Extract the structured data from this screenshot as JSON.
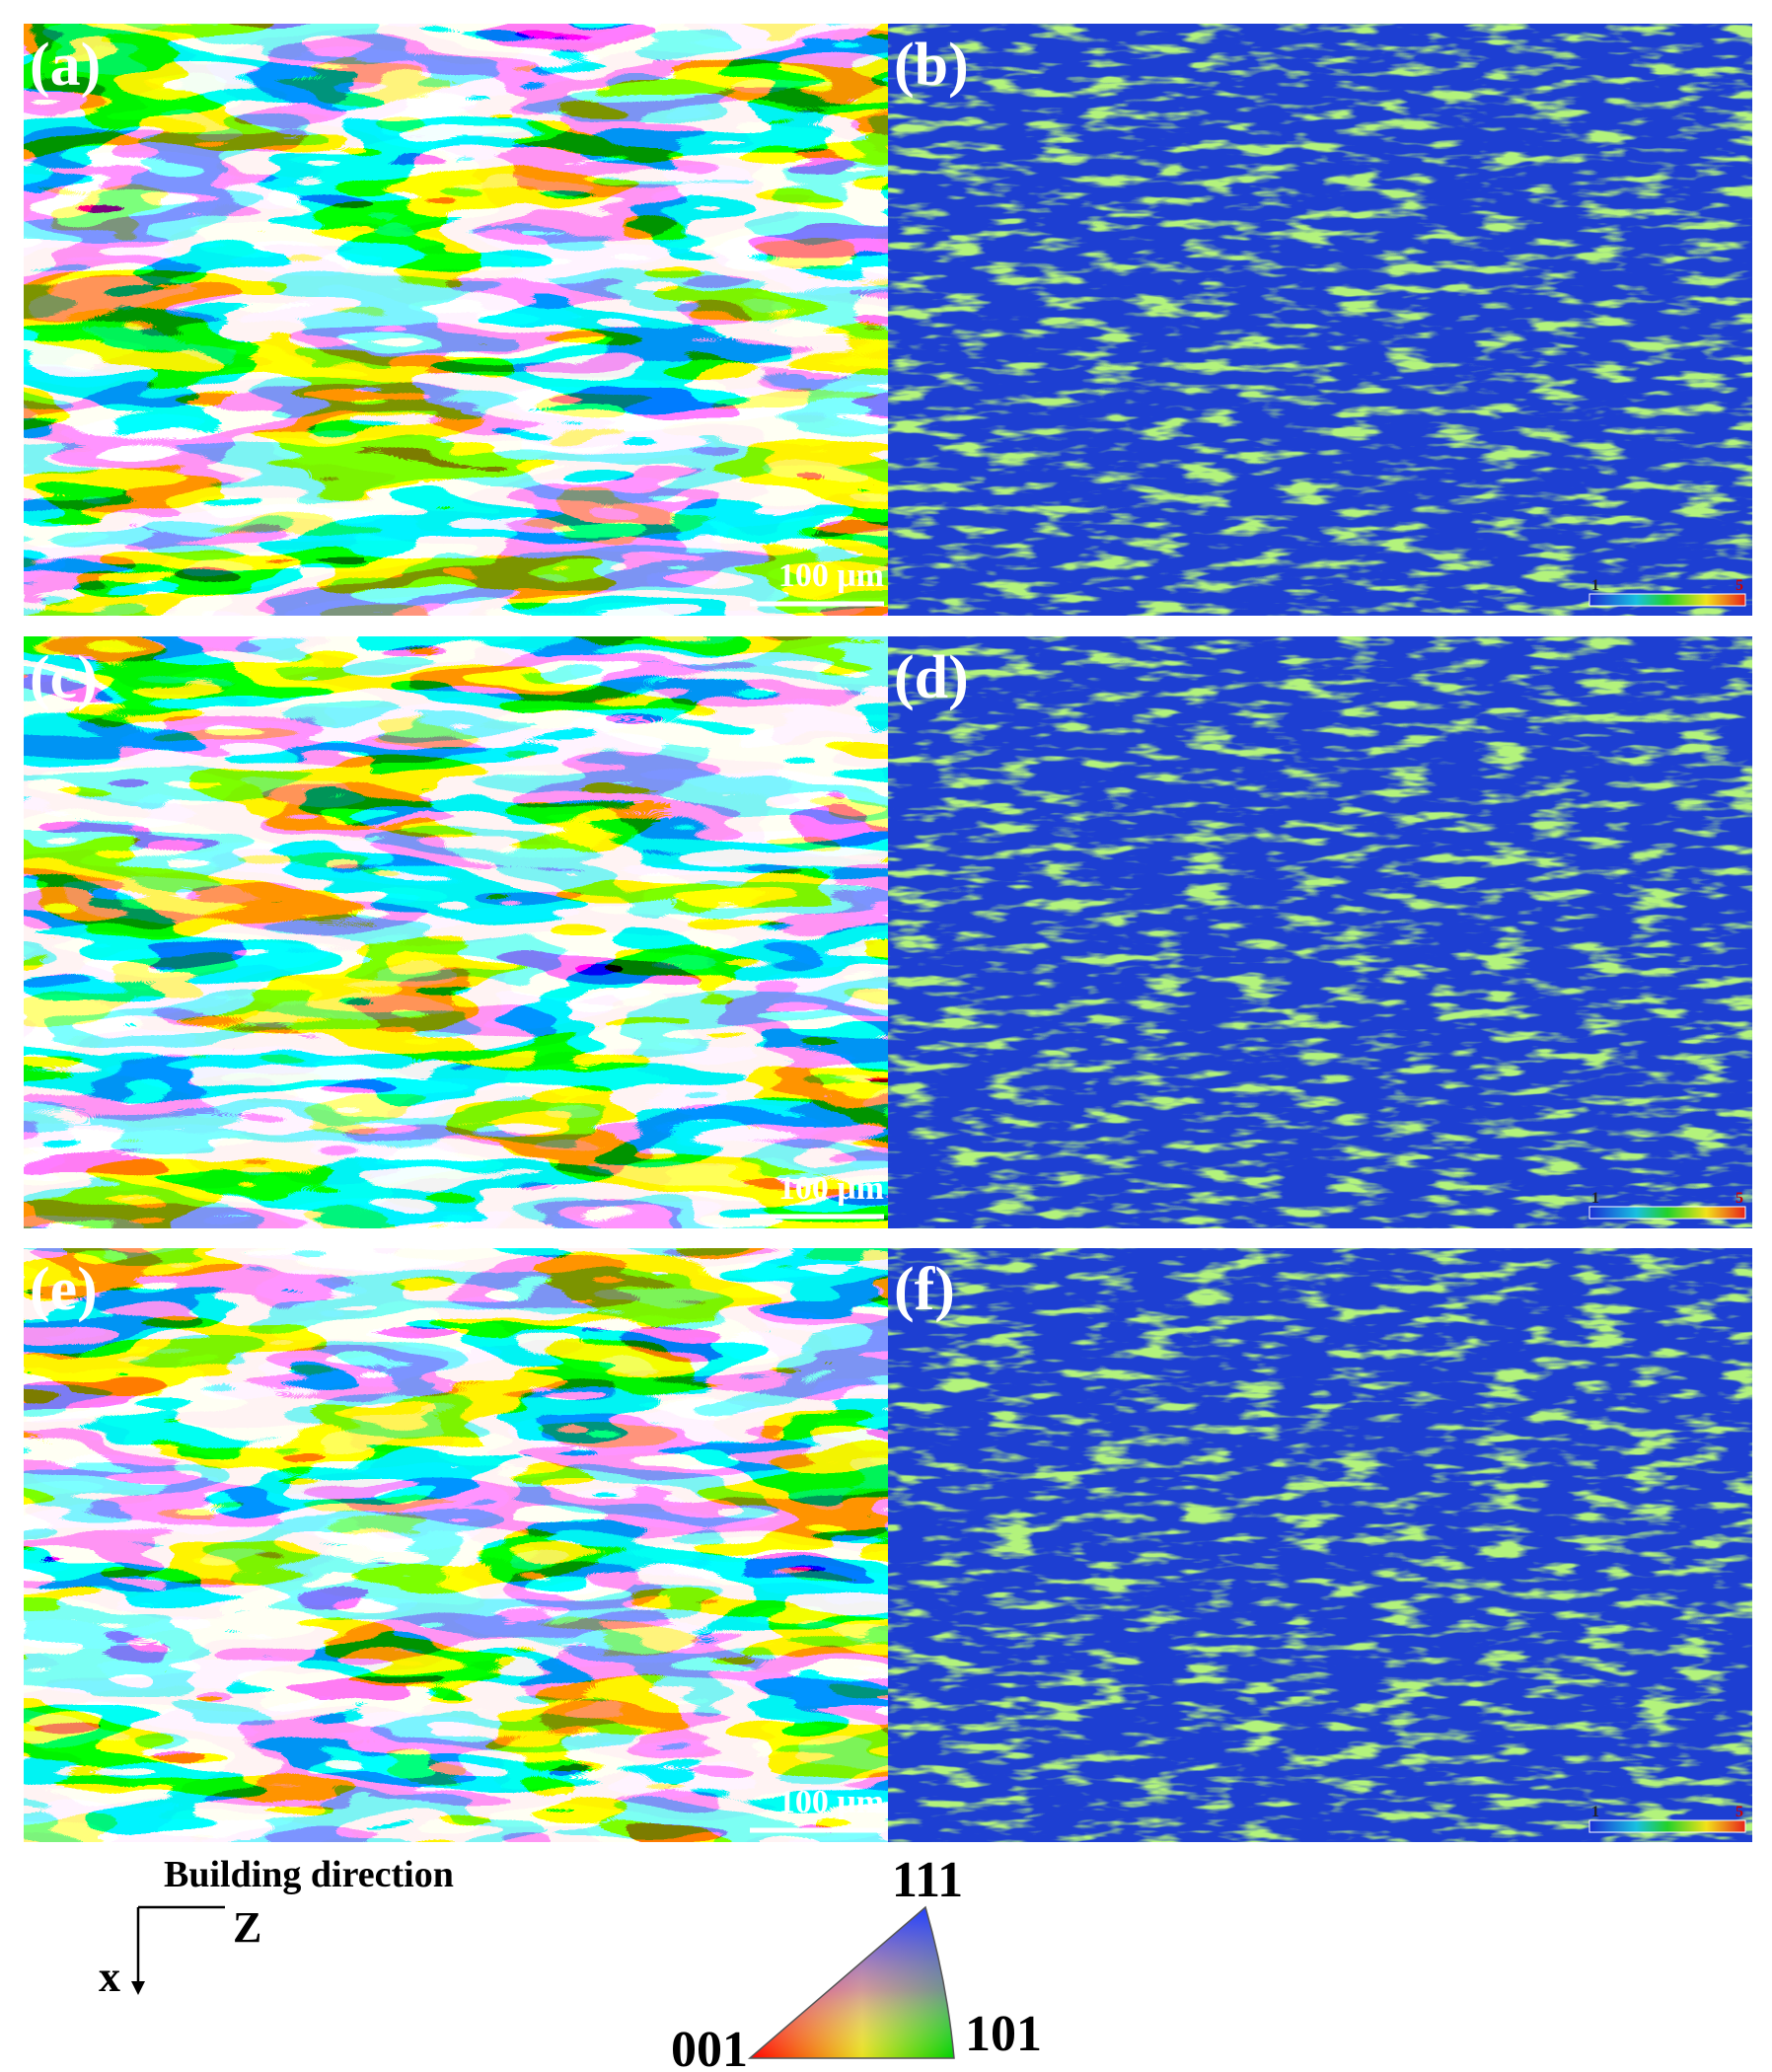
{
  "panels": [
    {
      "label": "(a)",
      "scale_bar": "100 μm"
    },
    {
      "label": "(b)",
      "colorbar": {
        "min": 1,
        "max": 5
      }
    },
    {
      "label": "(c)",
      "scale_bar": "100 μm"
    },
    {
      "label": "(d)",
      "colorbar": {
        "min": 1,
        "max": 5
      }
    },
    {
      "label": "(e)",
      "scale_bar": "100 μm"
    },
    {
      "label": "(f)",
      "colorbar": {
        "min": 1,
        "max": 5
      }
    }
  ],
  "axes": {
    "title": "Building direction",
    "z": "Z",
    "x": "x"
  },
  "ipf_key": {
    "top": "111",
    "left": "001",
    "right": "101"
  }
}
